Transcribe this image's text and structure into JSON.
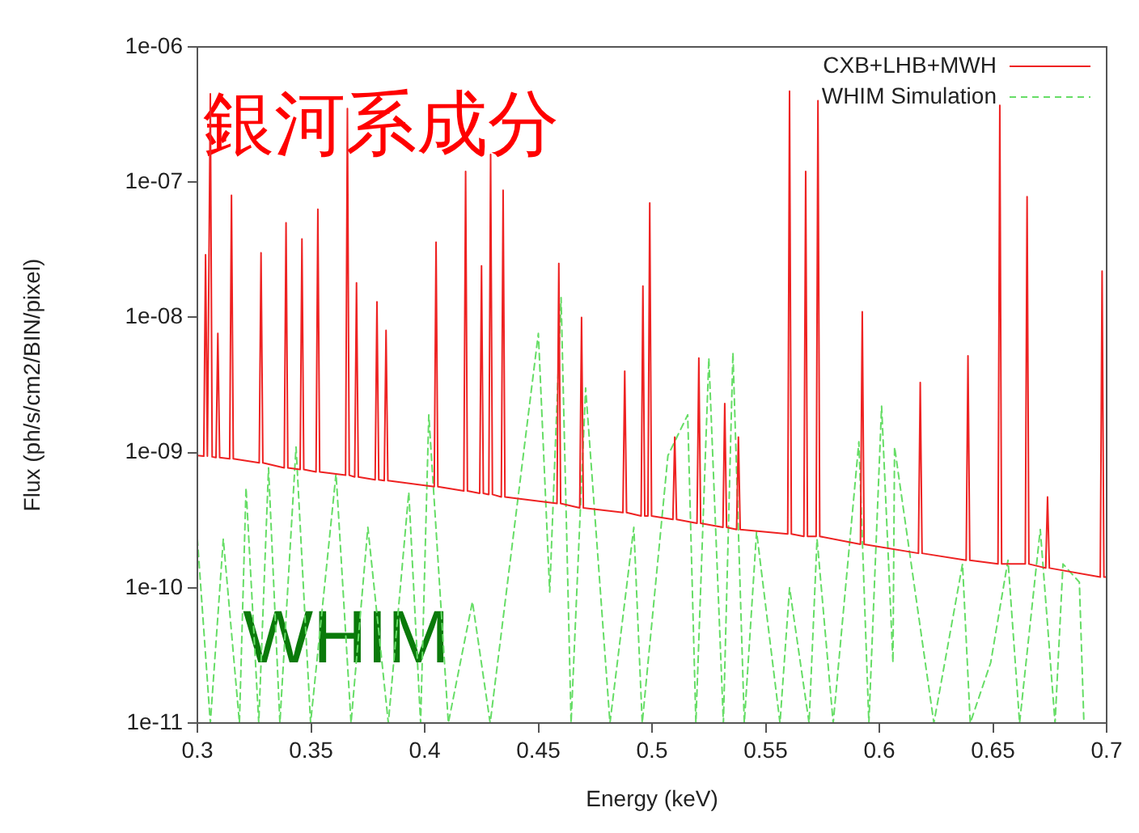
{
  "chart_data": {
    "type": "line",
    "xlabel": "Energy (keV)",
    "ylabel": "Flux (ph/s/cm2/BIN/pixel)",
    "log": "y",
    "legend": "top right",
    "grid": false,
    "marker": "none",
    "xlim": [
      0.3,
      0.7
    ],
    "xticks": [
      0.3,
      0.35,
      0.4,
      0.45,
      0.5,
      0.55,
      0.6,
      0.65,
      0.7
    ],
    "ylim": [
      1e-11,
      1e-06
    ],
    "yticks": [
      {
        "value": 1e-11,
        "label": "1e-11"
      },
      {
        "value": 1e-10,
        "label": "1e-10"
      },
      {
        "value": 1e-09,
        "label": "1e-09"
      },
      {
        "value": 1e-08,
        "label": "1e-08"
      },
      {
        "value": 1e-07,
        "label": "1e-07"
      },
      {
        "value": 1e-06,
        "label": "1e-06"
      }
    ],
    "annotations": [
      "銀河系成分",
      "WHIM"
    ],
    "series": [
      {
        "name": "CXB+LHB+MWH",
        "color": "#ee2222",
        "line_style": "solid",
        "x": [
          0.3,
          0.3028,
          0.3036,
          0.3044,
          0.3049,
          0.3057,
          0.3065,
          0.3082,
          0.309,
          0.3098,
          0.3142,
          0.315,
          0.3158,
          0.3272,
          0.328,
          0.3288,
          0.3382,
          0.339,
          0.3398,
          0.3452,
          0.346,
          0.3468,
          0.3522,
          0.353,
          0.3538,
          0.3652,
          0.366,
          0.3668,
          0.3692,
          0.37,
          0.3708,
          0.3782,
          0.379,
          0.3798,
          0.3822,
          0.383,
          0.3838,
          0.4042,
          0.405,
          0.4058,
          0.4172,
          0.418,
          0.4188,
          0.4242,
          0.425,
          0.4258,
          0.4282,
          0.429,
          0.4298,
          0.4337,
          0.4345,
          0.4353,
          0.4582,
          0.459,
          0.4598,
          0.4682,
          0.469,
          0.4698,
          0.4872,
          0.488,
          0.4888,
          0.4952,
          0.496,
          0.4968,
          0.4982,
          0.499,
          0.4998,
          0.5092,
          0.51,
          0.5108,
          0.5198,
          0.5206,
          0.5214,
          0.5312,
          0.532,
          0.5328,
          0.5372,
          0.538,
          0.5388,
          0.5597,
          0.5605,
          0.5613,
          0.5668,
          0.5676,
          0.5684,
          0.5722,
          0.573,
          0.5738,
          0.5917,
          0.5925,
          0.5933,
          0.6172,
          0.618,
          0.6188,
          0.6382,
          0.639,
          0.6398,
          0.6522,
          0.653,
          0.6538,
          0.6642,
          0.665,
          0.6658,
          0.6732,
          0.674,
          0.6748,
          0.6972,
          0.698,
          0.6988,
          0.7
        ],
        "values": [
          9.5e-10,
          9.4e-10,
          2.9e-08,
          9.4e-10,
          9.4e-10,
          4.5e-07,
          9.3e-10,
          9.2e-10,
          7.6e-09,
          9.2e-10,
          9e-10,
          8e-08,
          9e-10,
          8.4e-10,
          3e-08,
          8.4e-10,
          7.7e-10,
          5e-08,
          7.7e-10,
          7.5e-10,
          3.8e-08,
          7.5e-10,
          7.2e-10,
          6.3e-08,
          7.2e-10,
          6.8e-10,
          3.5e-07,
          6.8e-10,
          6.6e-10,
          1.8e-08,
          6.6e-10,
          6.3e-10,
          1.3e-08,
          6.3e-10,
          6.2e-10,
          8e-09,
          6.2e-10,
          5.6e-10,
          3.6e-08,
          5.6e-10,
          5.2e-10,
          1.2e-07,
          5.2e-10,
          5e-10,
          2.4e-08,
          5e-10,
          4.9e-10,
          1.6e-07,
          4.9e-10,
          4.7e-10,
          8.7e-08,
          4.7e-10,
          4.2e-10,
          2.5e-08,
          4.2e-10,
          3.9e-10,
          1e-08,
          3.9e-10,
          3.6e-10,
          4e-09,
          3.6e-10,
          3.4e-10,
          1.7e-08,
          3.4e-10,
          3.4e-10,
          7e-08,
          3.4e-10,
          3.2e-10,
          1.3e-09,
          3.2e-10,
          3e-10,
          5e-09,
          3e-10,
          2.8e-10,
          2.3e-09,
          2.8e-10,
          2.7e-10,
          1.3e-09,
          2.7e-10,
          2.5e-10,
          4.7e-07,
          2.5e-10,
          2.4e-10,
          1.2e-07,
          2.4e-10,
          2.4e-10,
          4e-07,
          2.4e-10,
          2.1e-10,
          1.1e-08,
          2.1e-10,
          1.8e-10,
          3.3e-09,
          1.8e-10,
          1.6e-10,
          5.2e-09,
          1.6e-10,
          1.5e-10,
          3.7e-07,
          1.5e-10,
          1.5e-10,
          7.8e-08,
          1.5e-10,
          1.4e-10,
          4.7e-10,
          1.4e-10,
          1.2e-10,
          2.2e-08,
          1.2e-10,
          1.2e-10
        ]
      },
      {
        "name": "WHIM Simulation",
        "color": "#66dd66",
        "line_style": "dashed",
        "x": [
          0.3,
          0.3057,
          0.3114,
          0.3185,
          0.3214,
          0.327,
          0.3313,
          0.3363,
          0.3434,
          0.3498,
          0.361,
          0.3676,
          0.375,
          0.384,
          0.393,
          0.3982,
          0.4018,
          0.4104,
          0.421,
          0.4288,
          0.45,
          0.455,
          0.46,
          0.4644,
          0.4708,
          0.4815,
          0.492,
          0.4957,
          0.507,
          0.5157,
          0.5193,
          0.525,
          0.5314,
          0.5356,
          0.5406,
          0.546,
          0.5563,
          0.5605,
          0.5691,
          0.5726,
          0.5797,
          0.591,
          0.5954,
          0.601,
          0.606,
          0.6067,
          0.624,
          0.6366,
          0.64,
          0.649,
          0.6566,
          0.6617,
          0.6708,
          0.6773,
          0.6808,
          0.688,
          0.69
        ],
        "values": [
          2.3e-10,
          1e-11,
          2.3e-10,
          1e-11,
          5.5e-10,
          1e-11,
          7.7e-10,
          1e-11,
          1.1e-09,
          1e-11,
          7e-10,
          1e-11,
          2.8e-10,
          1e-11,
          5.1e-10,
          1e-11,
          1.9e-09,
          1e-11,
          7.9e-11,
          1e-11,
          7.6e-09,
          9.3e-11,
          1.4e-08,
          1e-11,
          3e-09,
          1e-11,
          2.8e-10,
          1e-11,
          9.5e-10,
          1.9e-09,
          1e-11,
          5e-09,
          1e-11,
          5.5e-09,
          1e-11,
          2.6e-10,
          1e-11,
          1e-10,
          1e-11,
          2.3e-10,
          1e-11,
          1.2e-09,
          1e-11,
          2.2e-09,
          2.8e-11,
          1.1e-09,
          1e-11,
          1.5e-10,
          1e-11,
          2.8e-11,
          1.6e-10,
          1e-11,
          2.7e-10,
          1e-11,
          1.5e-10,
          1.1e-10,
          1e-11
        ]
      }
    ]
  }
}
